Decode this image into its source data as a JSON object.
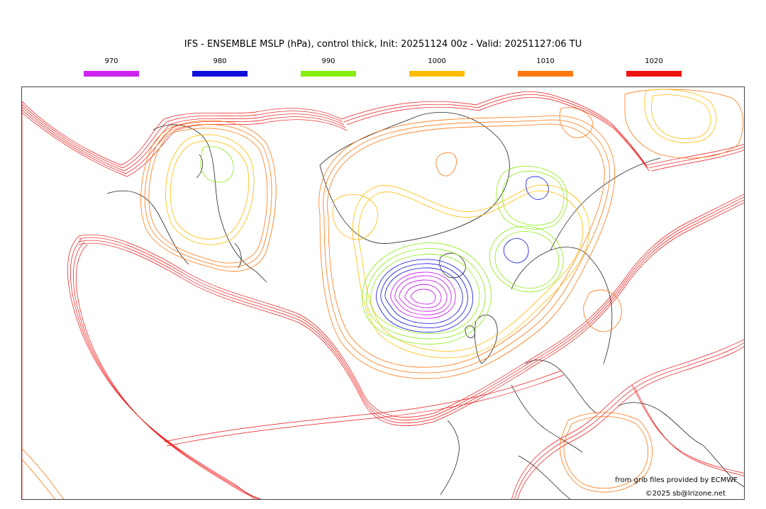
{
  "title": "IFS - ENSEMBLE MSLP (hPa), control thick, Init: 20251124 00z - Valid: 20251127:06 TU",
  "legend": [
    {
      "label": "970",
      "color": "#cc22ee"
    },
    {
      "label": "980",
      "color": "#1010dd"
    },
    {
      "label": "990",
      "color": "#88ee11"
    },
    {
      "label": "1000",
      "color": "#ffbb00"
    },
    {
      "label": "1010",
      "color": "#ff7711"
    },
    {
      "label": "1020",
      "color": "#ee1111"
    }
  ],
  "credits": {
    "source": "from grib files provided by ECMWF",
    "copyright": "©2025 sb@lrizone.net"
  }
}
